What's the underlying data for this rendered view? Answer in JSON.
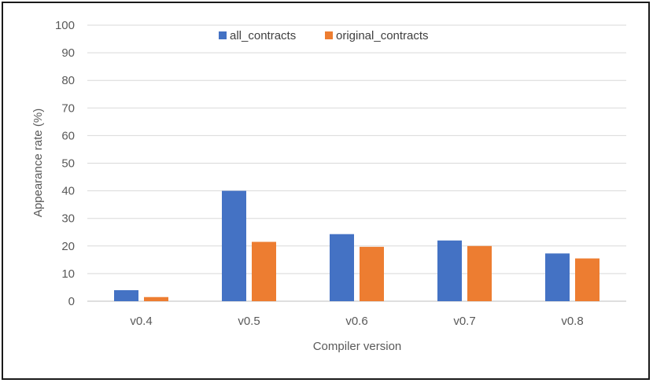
{
  "chart_data": {
    "type": "bar",
    "categories": [
      "v0.4",
      "v0.5",
      "v0.6",
      "v0.7",
      "v0.8"
    ],
    "series": [
      {
        "name": "all_contracts",
        "values": [
          4,
          40,
          24.3,
          22,
          17.3
        ],
        "color": "#4472c4"
      },
      {
        "name": "original_contracts",
        "values": [
          1.5,
          21.5,
          19.7,
          20,
          15.5
        ],
        "color": "#ed7d31"
      }
    ],
    "xlabel": "Compiler version",
    "ylabel": "Appearance rate (%)",
    "ylim": [
      0,
      100
    ],
    "yticks": [
      0,
      10,
      20,
      30,
      40,
      50,
      60,
      70,
      80,
      90,
      100
    ],
    "grid": true,
    "legend_position": "top-center"
  }
}
